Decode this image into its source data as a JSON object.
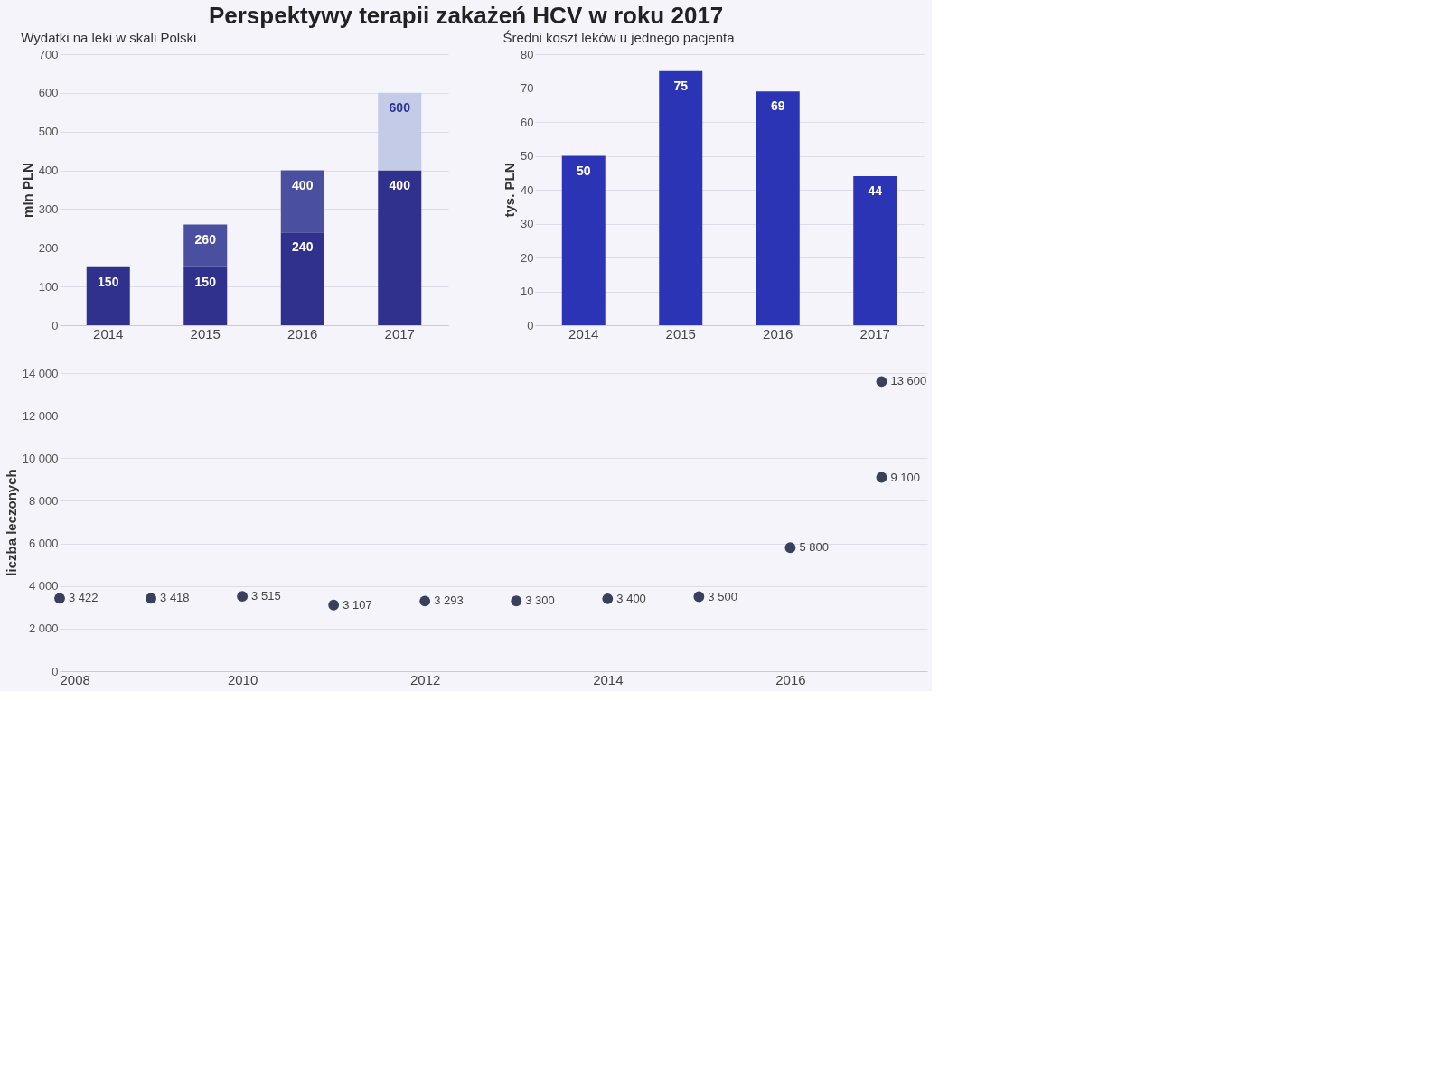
{
  "chart_data": [
    {
      "type": "bar",
      "title": "Perspektywy terapii zakażeń HCV w roku 2017",
      "subtitle": "Wydatki na leki w skali Polski",
      "ylabel": "mln PLN",
      "categories": [
        "2014",
        "2015",
        "2016",
        "2017"
      ],
      "stacked": true,
      "series": [
        {
          "color": "#2f318c",
          "values": [
            150,
            150,
            240,
            400
          ],
          "value_labels": [
            "150",
            "150",
            "240",
            "400"
          ]
        },
        {
          "colors": [
            null,
            "#4b4fa0",
            "#4b4fa0",
            "#c3cbe6"
          ],
          "values": [
            null,
            110,
            160,
            200
          ]
        }
      ],
      "totals": [
        null,
        "260",
        "400",
        "600"
      ],
      "ylim": [
        0,
        700
      ],
      "yticks": [
        0,
        100,
        200,
        300,
        400,
        500,
        600,
        700
      ],
      "grid": "y"
    },
    {
      "type": "bar",
      "title": "Średni koszt leków u jednego pacjenta",
      "ylabel": "tys. PLN",
      "categories": [
        "2014",
        "2015",
        "2016",
        "2017"
      ],
      "series": [
        {
          "color": "#2b34b4",
          "values": [
            50,
            75,
            69,
            44
          ]
        }
      ],
      "data_labels": true,
      "ylim": [
        0,
        80
      ],
      "yticks": [
        0,
        10,
        20,
        30,
        40,
        50,
        60,
        70,
        80
      ],
      "grid": "y"
    },
    {
      "type": "scatter",
      "ylabel": "liczba leczonych",
      "marker": "circle",
      "series": [
        {
          "color": "#3a3f5c",
          "x": [
            2008,
            2009,
            2010,
            2011,
            2012,
            2013,
            2014,
            2015,
            2016,
            2017,
            2017
          ],
          "values": [
            3422,
            3418,
            3515,
            3107,
            3293,
            3300,
            3400,
            3500,
            5800,
            13600,
            9100
          ],
          "value_labels": [
            "3 422",
            "3 418",
            "3 515",
            "3 107",
            "3 293",
            "3 300",
            "3 400",
            "3 500",
            "5 800",
            "13 600",
            "9 100"
          ]
        }
      ],
      "xlim": [
        2008,
        2017.5
      ],
      "xticks": [
        2008,
        2010,
        2012,
        2014,
        2016
      ],
      "ylim": [
        0,
        14000
      ],
      "yticks": [
        0,
        {
          "value": 2000,
          "label": "2 000"
        },
        {
          "value": 4000,
          "label": "4 000"
        },
        {
          "value": 6000,
          "label": "6 000"
        },
        {
          "value": 8000,
          "label": "8 000"
        },
        {
          "value": 10000,
          "label": "10 000"
        },
        {
          "value": 12000,
          "label": "12 000"
        },
        {
          "value": 14000,
          "label": "14 000"
        }
      ],
      "grid": "y"
    }
  ]
}
